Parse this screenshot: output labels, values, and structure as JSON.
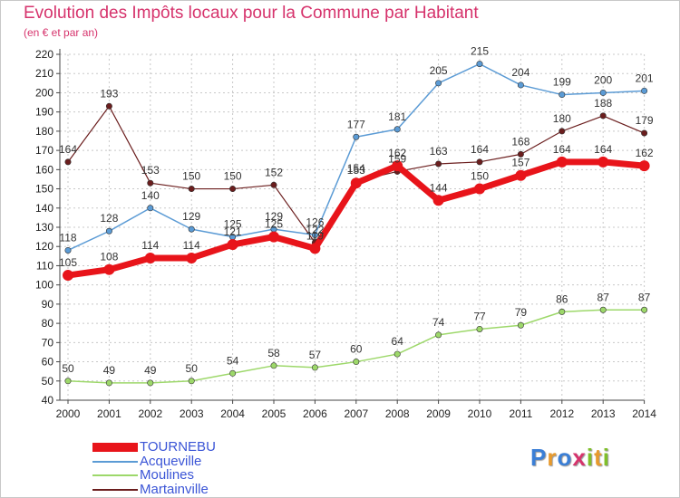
{
  "title": "Evolution des Impôts locaux pour la Commune par Habitant",
  "subtitle": "(en € et par an)",
  "logo": {
    "letters": [
      "P",
      "r",
      "o",
      "x",
      "i",
      "t",
      "i"
    ],
    "colors": [
      "#3b7fd6",
      "#e89a2c",
      "#3b7fd6",
      "#d6336c",
      "#7fbf2a",
      "#e89a2c",
      "#7fbf2a"
    ]
  },
  "chart_data": {
    "type": "line",
    "categories": [
      "2000",
      "2001",
      "2002",
      "2003",
      "2004",
      "2005",
      "2006",
      "2007",
      "2008",
      "2009",
      "2010",
      "2011",
      "2012",
      "2013",
      "2014"
    ],
    "ylim": [
      40,
      220
    ],
    "yticks": [
      40,
      50,
      60,
      70,
      80,
      90,
      100,
      110,
      120,
      130,
      140,
      150,
      160,
      170,
      180,
      190,
      200,
      210,
      220
    ],
    "grid": true,
    "legend_position": "bottom-left",
    "series": [
      {
        "name": "Martainville",
        "color": "#6b1e1e",
        "width": 1.2,
        "values": [
          164,
          193,
          153,
          150,
          150,
          152,
          122,
          154,
          159,
          163,
          164,
          168,
          180,
          188,
          179
        ]
      },
      {
        "name": "Moulines",
        "color": "#9dd86a",
        "width": 1.5,
        "values": [
          50,
          49,
          49,
          50,
          54,
          58,
          57,
          60,
          64,
          74,
          77,
          79,
          86,
          87,
          87
        ]
      },
      {
        "name": "Acqueville",
        "color": "#5b9bd5",
        "width": 1.5,
        "values": [
          118,
          128,
          140,
          129,
          125,
          129,
          126,
          177,
          181,
          205,
          215,
          204,
          199,
          200,
          201
        ]
      },
      {
        "name": "TOURNEBU",
        "color": "#e8141a",
        "width": 7,
        "values": [
          105,
          108,
          114,
          114,
          121,
          125,
          119,
          153,
          162,
          144,
          150,
          157,
          164,
          164,
          162
        ]
      }
    ],
    "legend_order": [
      "TOURNEBU",
      "Acqueville",
      "Moulines",
      "Martainville"
    ]
  }
}
